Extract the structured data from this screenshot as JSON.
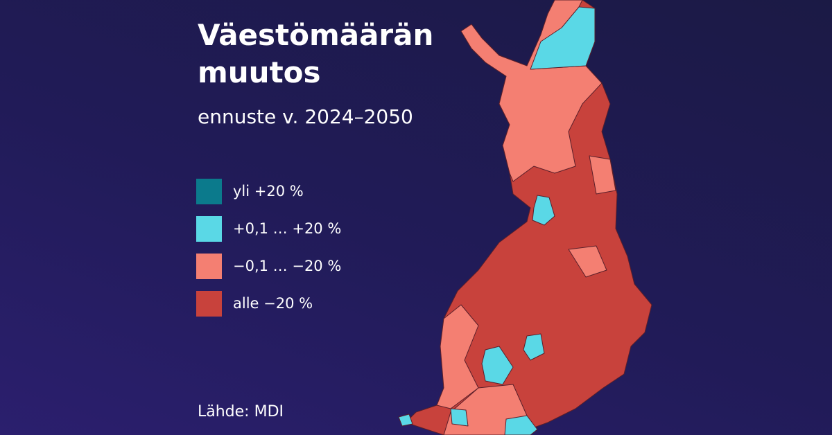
{
  "header": {
    "title": "Väestömäärän muutos",
    "subtitle": "ennuste v. 2024–2050"
  },
  "legend": [
    {
      "label": "yli +20 %",
      "color": "#0b7a8c"
    },
    {
      "label": "+0,1 … +20 %",
      "color": "#5ad8e6"
    },
    {
      "label": "−0,1 … −20 %",
      "color": "#f47f72"
    },
    {
      "label": "alle −20 %",
      "color": "#c8423c"
    }
  ],
  "source": "Lähde: MDI"
}
